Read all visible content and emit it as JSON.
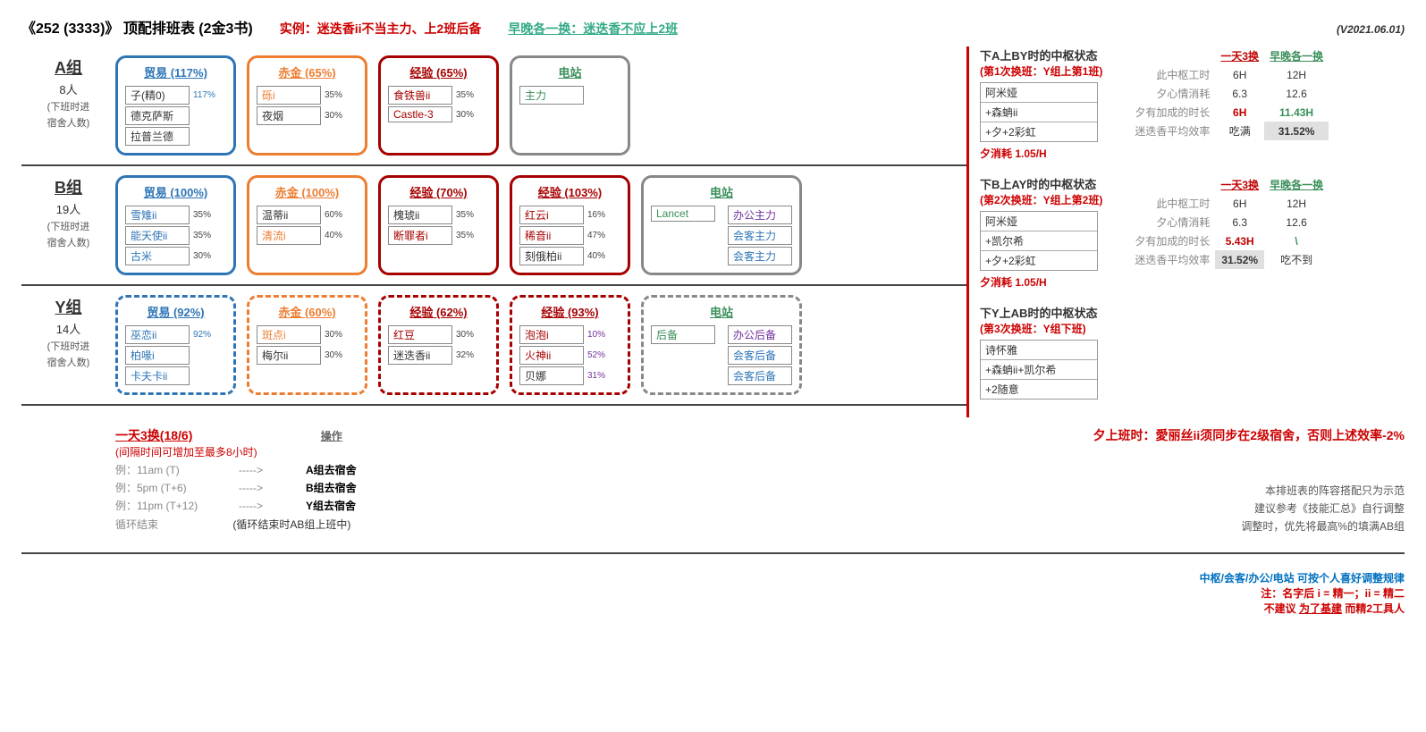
{
  "title": "《252 (3333)》 顶配排班表 (2金3书)",
  "title_example": "实例：迷迭香ii不当主力、上2班后备",
  "title_green": "早晚各一换：迷迭香不应上2班",
  "version": "(V2021.06.01)",
  "colors": {
    "blue": "#2e75b6",
    "orange": "#ed7d31",
    "darkred": "#a60000",
    "red": "#c00000",
    "gray": "#888888",
    "green": "#3a8f5a",
    "purple": "#7030a0"
  },
  "groups": [
    {
      "name": "A组",
      "count": "8人",
      "note1": "(下班时进",
      "note2": "宿舍人数)",
      "cards": [
        {
          "color": "blue",
          "title": "贸易 (117%)",
          "rows": [
            {
              "n": "子(精0)",
              "p": "117%",
              "pc": "blue"
            },
            {
              "n": "德克萨斯",
              "p": ""
            },
            {
              "n": "拉普兰德",
              "p": ""
            }
          ]
        },
        {
          "color": "orange",
          "title": "赤金 (65%)",
          "rows": [
            {
              "n": "砾i",
              "p": "35%",
              "nc": "orange"
            },
            {
              "n": "夜烟",
              "p": "30%"
            }
          ]
        },
        {
          "color": "darkred",
          "title": "经验 (65%)",
          "rows": [
            {
              "n": "食铁兽ii",
              "p": "35%",
              "nc": "darkred"
            },
            {
              "n": "Castle-3",
              "p": "30%",
              "nc": "darkred"
            }
          ]
        },
        {
          "color": "gray",
          "title": "电站",
          "tc": "green",
          "rows": [
            {
              "n": "主力",
              "nc": "green"
            }
          ],
          "wide": true
        }
      ]
    },
    {
      "name": "B组",
      "count": "19人",
      "note1": "(下班时进",
      "note2": "宿舍人数)",
      "cards": [
        {
          "color": "blue",
          "title": "贸易 (100%)",
          "rows": [
            {
              "n": "雪雉ii",
              "p": "35%",
              "nc": "blue"
            },
            {
              "n": "能天使ii",
              "p": "35%",
              "nc": "blue"
            },
            {
              "n": "古米",
              "p": "30%",
              "nc": "blue"
            }
          ]
        },
        {
          "color": "orange",
          "title": "赤金 (100%)",
          "rows": [
            {
              "n": "温蒂ii",
              "p": "60%"
            },
            {
              "n": "清流i",
              "p": "40%",
              "nc": "orange"
            }
          ]
        },
        {
          "color": "darkred",
          "title": "经验 (70%)",
          "rows": [
            {
              "n": "槐琥ii",
              "p": "35%"
            },
            {
              "n": "断罪者i",
              "p": "35%",
              "nc": "darkred"
            }
          ]
        },
        {
          "color": "darkred",
          "title": "经验 (103%)",
          "rows": [
            {
              "n": "红云i",
              "p": "16%",
              "nc": "darkred"
            },
            {
              "n": "稀音ii",
              "p": "47%",
              "nc": "darkred"
            },
            {
              "n": "刻俄柏ii",
              "p": "40%"
            }
          ]
        },
        {
          "color": "gray",
          "title": "电站",
          "tc": "green",
          "rows": [
            {
              "n": "Lancet",
              "nc": "green"
            }
          ],
          "plus": [
            {
              "n": "办公主力",
              "nc": "purple"
            },
            {
              "n": "会客主力",
              "nc": "blue"
            },
            {
              "n": "会客主力",
              "nc": "blue"
            }
          ]
        }
      ]
    },
    {
      "name": "Y组",
      "count": "14人",
      "note1": "(下班时进",
      "note2": "宿舍人数)",
      "dashed": true,
      "cards": [
        {
          "color": "blue",
          "title": "贸易 (92%)",
          "rows": [
            {
              "n": "巫恋ii",
              "p": "92%",
              "nc": "blue",
              "pc": "blue"
            },
            {
              "n": "柏喙i",
              "p": "",
              "nc": "blue"
            },
            {
              "n": "卡夫卡ii",
              "p": "",
              "nc": "blue"
            }
          ]
        },
        {
          "color": "orange",
          "title": "赤金 (60%)",
          "rows": [
            {
              "n": "斑点i",
              "p": "30%",
              "nc": "orange"
            },
            {
              "n": "梅尔ii",
              "p": "30%"
            }
          ]
        },
        {
          "color": "darkred",
          "title": "经验 (62%)",
          "rows": [
            {
              "n": "红豆",
              "p": "30%",
              "nc": "darkred"
            },
            {
              "n": "迷迭香ii",
              "p": "32%"
            }
          ]
        },
        {
          "color": "darkred",
          "title": "经验 (93%)",
          "rows": [
            {
              "n": "泡泡i",
              "p": "10%",
              "nc": "darkred",
              "pc": "purple"
            },
            {
              "n": "火神ii",
              "p": "52%",
              "nc": "darkred",
              "pc": "purple"
            },
            {
              "n": "贝娜",
              "p": "31%",
              "pc": "purple"
            }
          ]
        },
        {
          "color": "gray",
          "title": "电站",
          "tc": "green",
          "rows": [
            {
              "n": "后备",
              "nc": "green"
            }
          ],
          "plus": [
            {
              "n": "办公后备",
              "nc": "purple"
            },
            {
              "n": "会客后备",
              "nc": "blue"
            },
            {
              "n": "会客后备",
              "nc": "blue"
            }
          ]
        }
      ]
    }
  ],
  "centers": [
    {
      "title": "下A上BY时的中枢状态",
      "sub": "(第1次换班：Y组上第1班)",
      "rows": [
        "阿米娅",
        "+森蚺ii",
        "+夕+2彩虹"
      ],
      "note": "夕消耗 1.05/H",
      "eff": {
        "h": [
          "一天3换",
          "早晚各一换"
        ],
        "hc": [
          "#c00000",
          "#3a8f5a"
        ],
        "rows": [
          {
            "l": "此中枢工时",
            "a": "6H",
            "b": "12H"
          },
          {
            "l": "夕心情消耗",
            "a": "6.3",
            "b": "12.6"
          },
          {
            "l": "夕有加成的时长",
            "a": "6H",
            "ac": "#c00000",
            "b": "11.43H",
            "bc": "#3a8f5a"
          },
          {
            "l": "迷迭香平均效率",
            "a": "吃满",
            "b": "31.52%",
            "bhl": true
          }
        ]
      }
    },
    {
      "title": "下B上AY时的中枢状态",
      "sub": "(第2次换班：Y组上第2班)",
      "rows": [
        "阿米娅",
        "+凯尔希",
        "+夕+2彩虹"
      ],
      "note": "夕消耗 1.05/H",
      "eff": {
        "h": [
          "一天3换",
          "早晚各一换"
        ],
        "hc": [
          "#c00000",
          "#3a8f5a"
        ],
        "rows": [
          {
            "l": "此中枢工时",
            "a": "6H",
            "b": "12H"
          },
          {
            "l": "夕心情消耗",
            "a": "6.3",
            "b": "12.6"
          },
          {
            "l": "夕有加成的时长",
            "a": "5.43H",
            "ac": "#c00000",
            "b": "\\",
            "bc": "#3a8f5a"
          },
          {
            "l": "迷迭香平均效率",
            "a": "31.52%",
            "ahl": true,
            "b": "吃不到"
          }
        ]
      }
    },
    {
      "title": "下Y上AB时的中枢状态",
      "sub": "(第3次换班：Y组下班)",
      "rows": [
        "诗怀雅",
        "+森蚺ii+凯尔希",
        "+2随意"
      ],
      "note": ""
    }
  ],
  "schedule": {
    "title": "一天3换(18/6)",
    "op": "操作",
    "note": "(间隔时间可增加至最多8小时)",
    "lines": [
      {
        "t": "例：11am  (T)",
        "d": "A组去宿舍"
      },
      {
        "t": "例：5pm  (T+6)",
        "d": "B组去宿舍"
      },
      {
        "t": "例：11pm  (T+12)",
        "d": "Y组去宿舍"
      }
    ],
    "loop_l": "循环结束",
    "loop_r": "(循环结束时AB组上班中)"
  },
  "warn": "夕上班时：愛丽丝ii须同步在2级宿舍，否则上述效率-2%",
  "info": [
    "本排班表的阵容搭配只为示范",
    "建议参考《技能汇总》自行调整",
    "调整时，优先将最高%的填满AB组"
  ],
  "footer": {
    "f1": "中枢/会客/办公/电站 可按个人喜好调整规律",
    "f2": "注：名字后 i = 精一；ii = 精二",
    "f3a": "不建议",
    "f3b": "为了基建",
    "f3c": " 而精2工具人"
  }
}
